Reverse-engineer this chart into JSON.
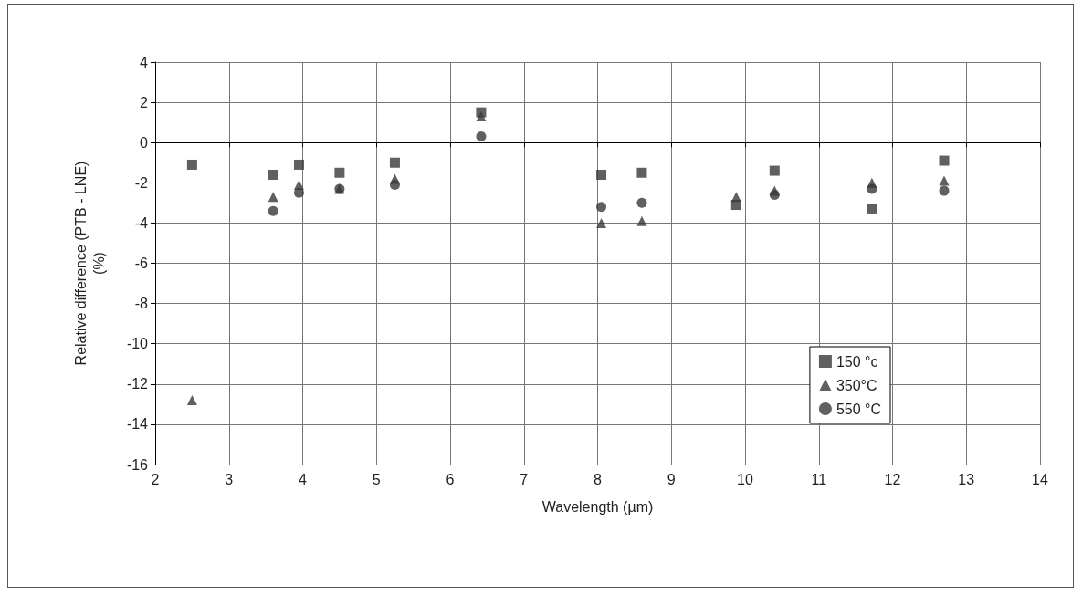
{
  "chart_data": {
    "type": "scatter",
    "xlabel": "Wavelength (µm)",
    "ylabel": "Relative difference (PTB - LNE)\n(%)",
    "x": [
      2.5,
      3.6,
      3.95,
      4.5,
      5.25,
      6.42,
      8.05,
      8.6,
      9.88,
      10.4,
      11.72,
      12.7
    ],
    "series": [
      {
        "name": "150 °c",
        "color": "#383838",
        "marker": "square",
        "values": [
          -1.1,
          -1.6,
          -1.1,
          -1.5,
          -1.0,
          1.5,
          -1.6,
          -1.5,
          -3.1,
          -1.4,
          -3.3,
          -0.9
        ]
      },
      {
        "name": "350°C",
        "color": "#383838",
        "marker": "triangle",
        "values": [
          -12.8,
          -2.7,
          -2.1,
          -2.3,
          -1.8,
          1.3,
          -4.0,
          -3.9,
          -2.7,
          -2.4,
          -2.0,
          -1.9
        ]
      },
      {
        "name": "550 °C",
        "color": "#383838",
        "marker": "circle",
        "values": [
          null,
          -3.4,
          -2.5,
          -2.3,
          -2.1,
          0.3,
          -3.2,
          -3.0,
          null,
          -2.6,
          -2.3,
          -2.4
        ]
      }
    ],
    "xlim": [
      2,
      14
    ],
    "xticks": [
      2,
      3,
      4,
      5,
      6,
      7,
      8,
      9,
      10,
      11,
      12,
      13,
      14
    ],
    "ylim": [
      -16,
      4
    ],
    "yticks": [
      -16,
      -14,
      -12,
      -10,
      -8,
      -6,
      -4,
      -2,
      0,
      2,
      4
    ],
    "grid": true,
    "legend": "right"
  }
}
